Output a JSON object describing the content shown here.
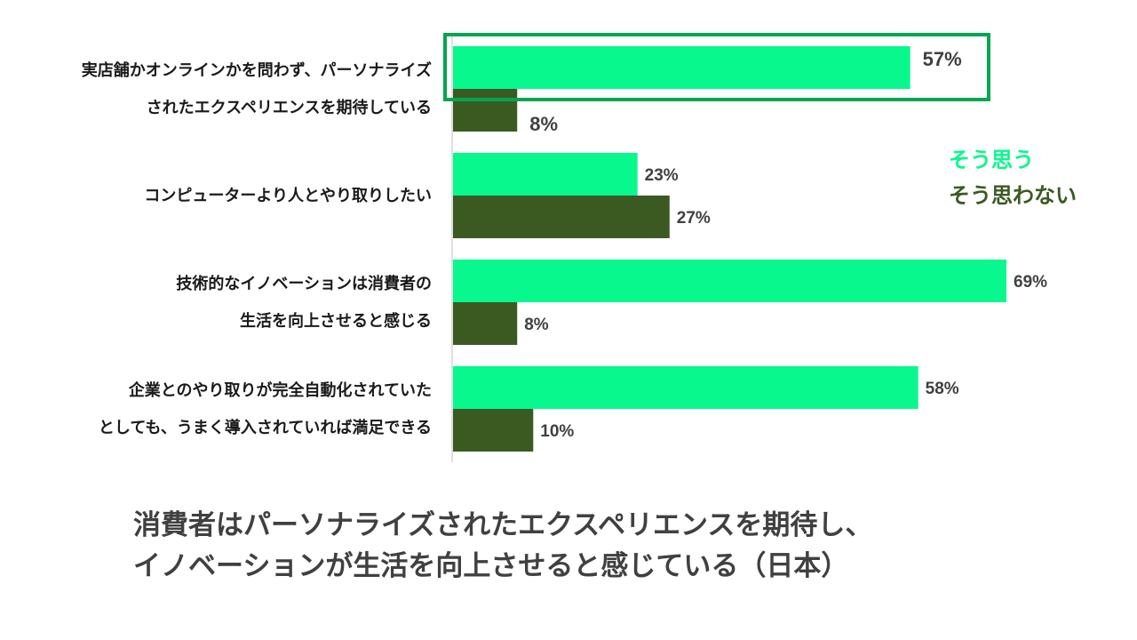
{
  "chart_data": {
    "type": "bar",
    "orientation": "horizontal",
    "categories": [
      [
        "実店舗かオンラインかを問わず、パーソナライズ",
        "されたエクスペリエンスを期待している"
      ],
      [
        "コンピューターより人とやり取りしたい"
      ],
      [
        "技術的なイノベーションは消費者の",
        "生活を向上させると感じる"
      ],
      [
        "企業とのやり取りが完全自動化されていた",
        "としても、うまく導入されていれば満足できる"
      ]
    ],
    "series": [
      {
        "name": "そう思う",
        "color": "#08f88e",
        "values": [
          57,
          23,
          69,
          58
        ]
      },
      {
        "name": "そう思わない",
        "color": "#3a5a22",
        "values": [
          8,
          27,
          8,
          10
        ]
      }
    ],
    "value_suffix": "%",
    "xlim": [
      0,
      69
    ],
    "legend_position": "right",
    "highlight": {
      "category_index": 0,
      "series_index": 0,
      "color": "#00a650"
    },
    "grid": false
  },
  "caption": {
    "line1": "消費者はパーソナライズされたエクスペリエンスを期待し、",
    "line2": "イノベーションが生活を向上させると感じている（日本）"
  }
}
